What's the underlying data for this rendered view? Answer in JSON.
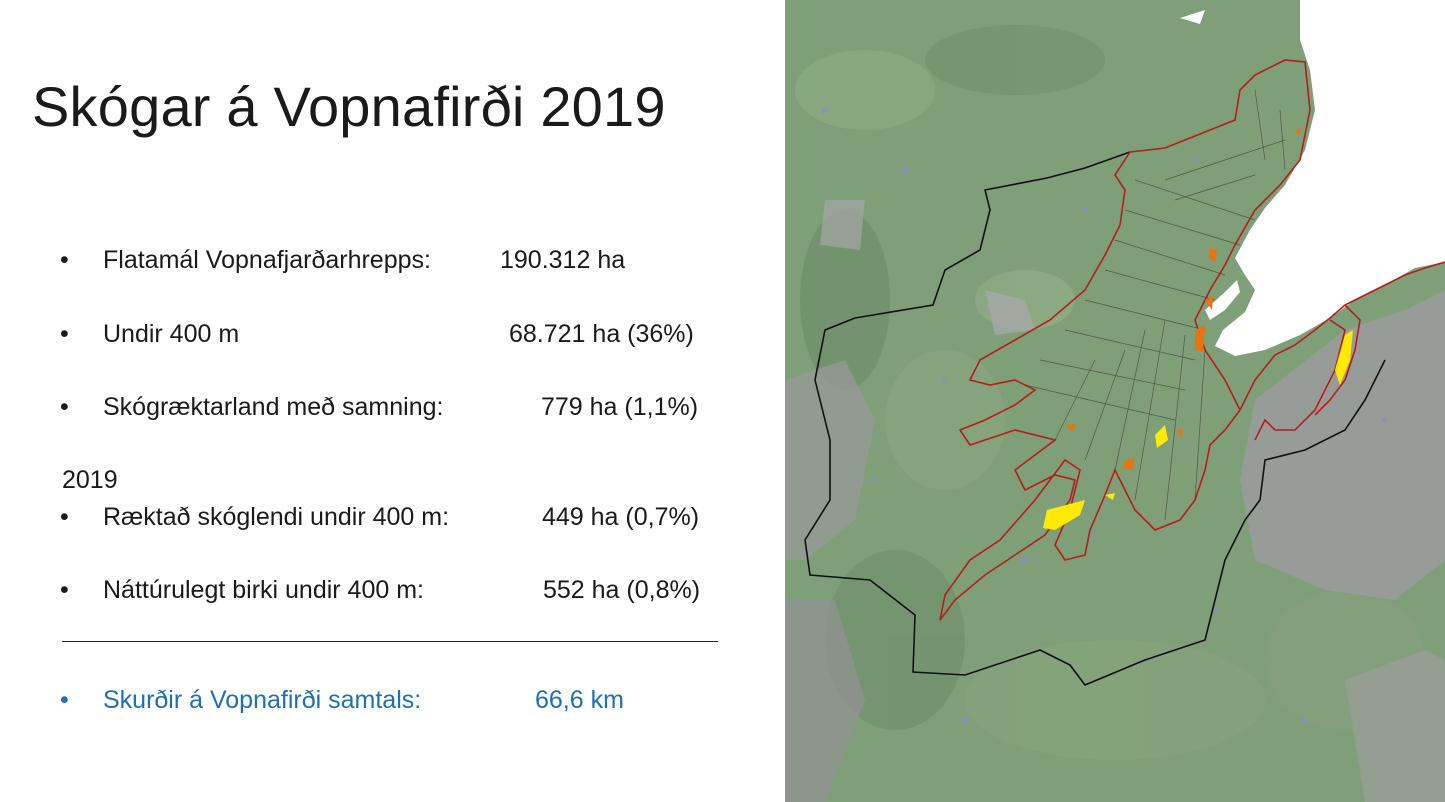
{
  "title": "Skógar á Vopnafirði 2019",
  "bullet_glyph": "•",
  "stats": [
    {
      "label": "Flatamál Vopnafjarðarhrepps:",
      "value": "190.312 ha"
    },
    {
      "label": "Undir 400 m",
      "value": "68.721 ha (36%)"
    },
    {
      "label": "Skógræktarland með samning:",
      "value": "779 ha (1,1%)"
    }
  ],
  "year_heading": "2019",
  "stats_2019": [
    {
      "label": "Ræktað skóglendi undir 400 m:",
      "value": "449 ha (0,7%)"
    },
    {
      "label": "Náttúrulegt birki undir 400 m:",
      "value": "552 ha (0,8%)"
    }
  ],
  "total": {
    "label": "Skurðir á Vopnafirði samtals:",
    "value": "66,6 km"
  },
  "colors": {
    "accent_text": "#1f6fb3",
    "terrain": "#7f9f78",
    "mountains": "#9c9c9c",
    "sea": "#ffffff",
    "municipality_border": "#111111",
    "lowland_boundary": "#b41e1e",
    "birch": "#ffea00",
    "forest": "#e8730f"
  }
}
